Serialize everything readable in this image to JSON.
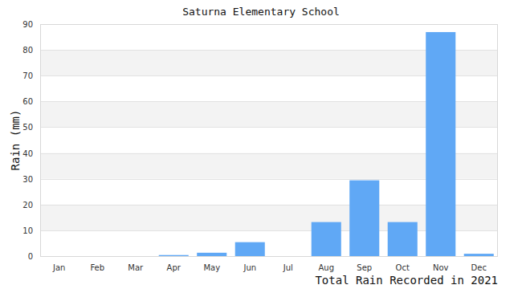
{
  "chart_data": {
    "type": "bar",
    "title": "Saturna Elementary School",
    "ylabel": "Rain (mm)",
    "xlabel": "Total Rain Recorded in 2021",
    "categories": [
      "Jan",
      "Feb",
      "Mar",
      "Apr",
      "May",
      "Jun",
      "Jul",
      "Aug",
      "Sep",
      "Oct",
      "Nov",
      "Dec"
    ],
    "values": [
      0,
      0,
      0,
      0.4,
      1.3,
      5.4,
      0,
      13.2,
      29.4,
      13.2,
      86.9,
      0.9
    ],
    "color": "#60a8f5",
    "ylim": [
      0,
      90
    ],
    "yticks": [
      0,
      10,
      20,
      30,
      40,
      50,
      60,
      70,
      80,
      90
    ],
    "grid": true
  }
}
